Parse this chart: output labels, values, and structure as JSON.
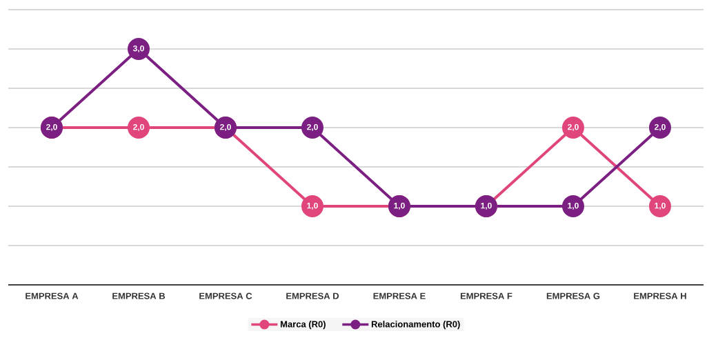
{
  "chart_data": {
    "type": "line",
    "categories": [
      "EMPRESA A",
      "EMPRESA B",
      "EMPRESA C",
      "EMPRESA D",
      "EMPRESA E",
      "EMPRESA F",
      "EMPRESA G",
      "EMPRESA H"
    ],
    "series": [
      {
        "name": "Marca (R0)",
        "color": "#e0457b",
        "values": [
          2,
          2,
          2,
          1,
          1,
          1,
          2,
          1
        ],
        "value_labels": [
          null,
          "2,0",
          null,
          "1,0",
          null,
          null,
          "2,0",
          "1,0"
        ]
      },
      {
        "name": "Relacionamento (R0)",
        "color": "#7b1f82",
        "values": [
          2,
          3,
          2,
          2,
          1,
          1,
          1,
          2
        ],
        "value_labels": [
          "2,0",
          "3,0",
          "2,0",
          "2,0",
          "1,0",
          "1,0",
          "1,0",
          "2,0"
        ]
      }
    ],
    "ylim": [
      0,
      3.5
    ],
    "tick_labels": "x",
    "grid": "y",
    "legend": "bottom",
    "marker": "circle",
    "line_style": "solid"
  }
}
